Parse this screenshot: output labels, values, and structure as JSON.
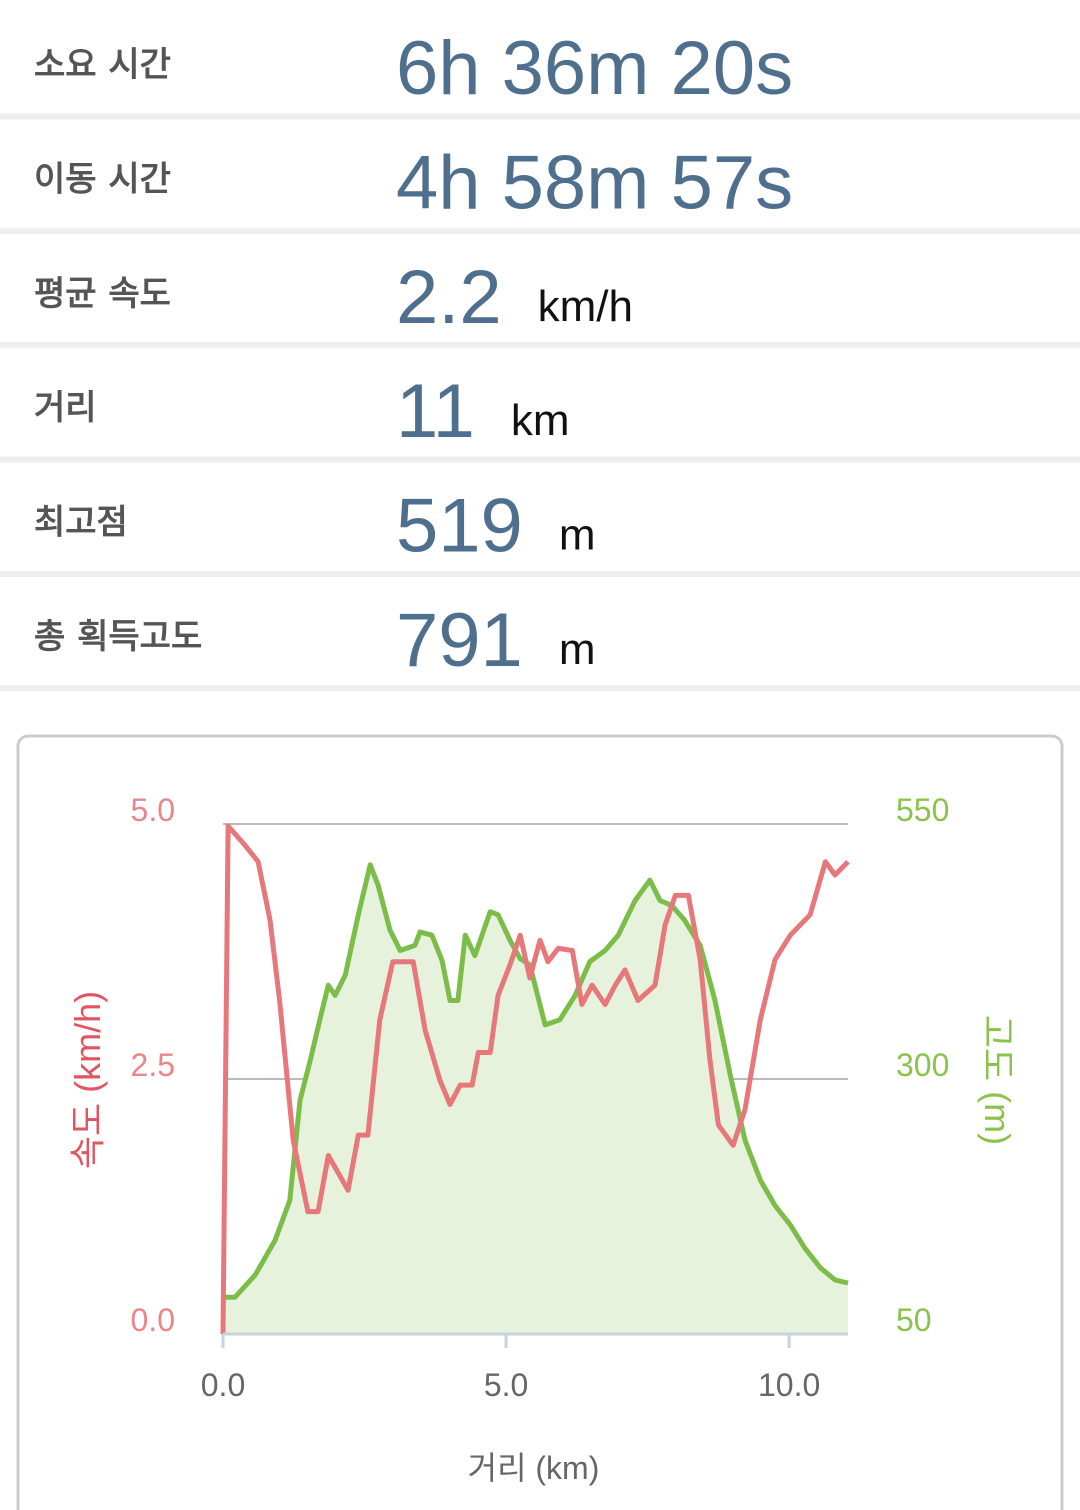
{
  "stats": [
    {
      "label": "소요 시간",
      "value": "6h 36m 20s"
    },
    {
      "label": "이동 시간",
      "value": "4h 58m 57s"
    },
    {
      "label": "평균 속도",
      "value": "2.2",
      "unit": "km/h"
    },
    {
      "label": "거리",
      "value": "11",
      "unit": "km"
    },
    {
      "label": "최고점",
      "value": "519",
      "unit": "m"
    },
    {
      "label": "총 획득고도",
      "value": "791",
      "unit": "m"
    }
  ],
  "chart_data": {
    "type": "line",
    "xlabel": "거리 (km)",
    "ylabel": "속도 (km/h)",
    "y2label": "고도 (m)",
    "xlim": [
      0,
      11.04
    ],
    "xticks": [
      {
        "value": 0,
        "label": "0.0"
      },
      {
        "value": 5,
        "label": "5.0"
      },
      {
        "value": 10,
        "label": "10.0"
      }
    ],
    "ylim": [
      0,
      5
    ],
    "yticks": [
      {
        "value": 0,
        "label": "0.0"
      },
      {
        "value": 2.5,
        "label": "2.5"
      },
      {
        "value": 5,
        "label": "5.0"
      }
    ],
    "y2lim": [
      50,
      550
    ],
    "y2ticks": [
      50,
      300,
      550
    ],
    "grid": true,
    "series": [
      {
        "color": "#e8777b",
        "axis": "y",
        "x": [
          0,
          0.09,
          0.39,
          0.62,
          0.83,
          1.0,
          1.24,
          1.5,
          1.68,
          1.86,
          2.21,
          2.39,
          2.56,
          2.77,
          3.0,
          3.36,
          3.57,
          3.83,
          4.01,
          4.19,
          4.4,
          4.51,
          4.72,
          4.86,
          5.07,
          5.25,
          5.42,
          5.6,
          5.74,
          5.92,
          6.17,
          6.34,
          6.52,
          6.75,
          6.93,
          7.1,
          7.33,
          7.63,
          7.81,
          7.99,
          8.22,
          8.43,
          8.6,
          8.75,
          9.01,
          9.22,
          9.49,
          9.75,
          10.02,
          10.37,
          10.64,
          10.81,
          11.04
        ],
        "values": [
          0,
          4.98,
          4.79,
          4.63,
          4.06,
          3.27,
          1.9,
          1.2,
          1.2,
          1.75,
          1.41,
          1.95,
          1.95,
          3.08,
          3.65,
          3.65,
          2.98,
          2.49,
          2.25,
          2.44,
          2.44,
          2.76,
          2.76,
          3.32,
          3.62,
          3.91,
          3.49,
          3.86,
          3.65,
          3.78,
          3.76,
          3.23,
          3.42,
          3.23,
          3.42,
          3.57,
          3.27,
          3.42,
          4.01,
          4.3,
          4.3,
          3.67,
          2.69,
          2.05,
          1.85,
          2.2,
          3.08,
          3.67,
          3.91,
          4.11,
          4.63,
          4.5,
          4.63
        ]
      },
      {
        "color": "#7cbd4a",
        "axis": "y2",
        "fill": "#e6f2dc",
        "x": [
          0,
          0.21,
          0.57,
          0.92,
          1.18,
          1.36,
          1.54,
          1.71,
          1.86,
          1.98,
          2.16,
          2.39,
          2.6,
          2.74,
          2.95,
          3.13,
          3.39,
          3.48,
          3.69,
          3.87,
          4.01,
          4.15,
          4.28,
          4.45,
          4.72,
          4.86,
          5.07,
          5.25,
          5.42,
          5.69,
          5.95,
          6.22,
          6.48,
          6.75,
          6.98,
          7.28,
          7.54,
          7.72,
          7.93,
          8.15,
          8.43,
          8.69,
          8.96,
          9.22,
          9.49,
          9.75,
          10.02,
          10.28,
          10.55,
          10.81,
          11.04
        ],
        "values": [
          86,
          86,
          108,
          142,
          181,
          279,
          318,
          358,
          392,
          382,
          402,
          461,
          510,
          490,
          446,
          426,
          431,
          444,
          441,
          416,
          377,
          377,
          441,
          421,
          464,
          461,
          436,
          418,
          412,
          353,
          358,
          382,
          415,
          426,
          441,
          475,
          495,
          475,
          470,
          456,
          431,
          377,
          304,
          240,
          201,
          176,
          157,
          134,
          115,
          103,
          100
        ]
      }
    ]
  }
}
